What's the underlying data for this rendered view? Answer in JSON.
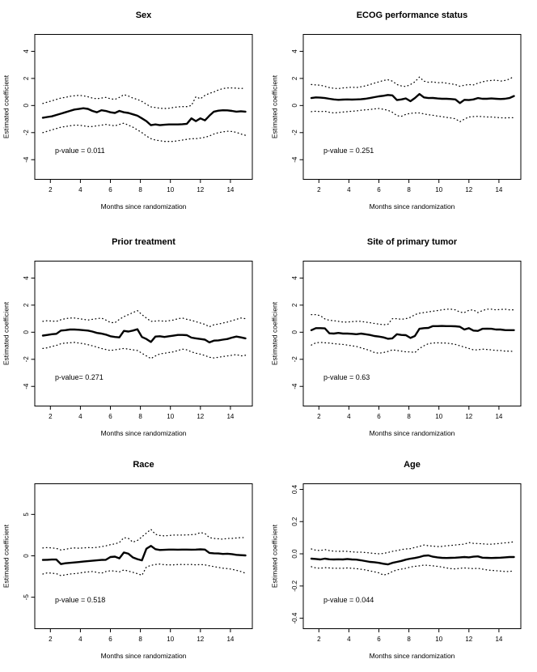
{
  "figure": {
    "description": "Grid of six time-varying coefficient diagnostic plots (solid estimate with dotted 95% confidence bands)",
    "background_color": "#ffffff",
    "line_color": "#000000"
  },
  "axes_common": {
    "xlabel": "Months since randomization",
    "ylabel": "Estimated coefficient",
    "xlim": [
      0.96,
      15.46
    ],
    "x_tick_vals": [
      2,
      4,
      6,
      8,
      10,
      12,
      14
    ],
    "x_tick_labels": [
      "2",
      "4",
      "6",
      "8",
      "10",
      "12",
      "14"
    ],
    "x_start": 1.5,
    "x_step": 0.3,
    "n_points": 46,
    "grid": "off",
    "band_style": "dotted",
    "fit_style": "solid-bold"
  },
  "chart_data": [
    {
      "type": "line",
      "title": "Sex",
      "p_label": "p-value = 0.011",
      "p_value": 0.011,
      "ylim": [
        -5.45,
        5.25
      ],
      "y_tick_vals": [
        -4,
        -2,
        0,
        2,
        4
      ],
      "y_tick_labels": [
        "-4",
        "-2",
        "0",
        "2",
        "4"
      ],
      "fit": [
        -0.9,
        -0.85,
        -0.8,
        -0.7,
        -0.6,
        -0.5,
        -0.4,
        -0.3,
        -0.25,
        -0.2,
        -0.25,
        -0.4,
        -0.5,
        -0.35,
        -0.4,
        -0.5,
        -0.55,
        -0.4,
        -0.5,
        -0.55,
        -0.65,
        -0.75,
        -0.95,
        -1.15,
        -1.45,
        -1.4,
        -1.45,
        -1.42,
        -1.4,
        -1.4,
        -1.4,
        -1.38,
        -1.35,
        -0.95,
        -1.15,
        -0.95,
        -1.1,
        -0.75,
        -0.45,
        -0.38,
        -0.35,
        -0.36,
        -0.4,
        -0.45,
        -0.42,
        -0.45
      ],
      "upper": [
        0.15,
        0.25,
        0.35,
        0.45,
        0.55,
        0.6,
        0.68,
        0.72,
        0.75,
        0.72,
        0.65,
        0.55,
        0.5,
        0.55,
        0.6,
        0.5,
        0.45,
        0.6,
        0.8,
        0.7,
        0.55,
        0.45,
        0.3,
        0.1,
        -0.1,
        -0.15,
        -0.2,
        -0.22,
        -0.2,
        -0.15,
        -0.1,
        -0.08,
        -0.08,
        0.0,
        0.65,
        0.5,
        0.75,
        0.9,
        1.0,
        1.15,
        1.25,
        1.3,
        1.3,
        1.28,
        1.25,
        1.3
      ],
      "lower": [
        -2.0,
        -1.9,
        -1.8,
        -1.7,
        -1.6,
        -1.55,
        -1.5,
        -1.45,
        -1.45,
        -1.5,
        -1.55,
        -1.55,
        -1.5,
        -1.45,
        -1.4,
        -1.45,
        -1.5,
        -1.4,
        -1.3,
        -1.45,
        -1.6,
        -1.8,
        -2.0,
        -2.25,
        -2.45,
        -2.55,
        -2.6,
        -2.65,
        -2.65,
        -2.65,
        -2.6,
        -2.55,
        -2.5,
        -2.45,
        -2.45,
        -2.4,
        -2.35,
        -2.25,
        -2.1,
        -2.0,
        -1.95,
        -1.9,
        -1.92,
        -1.98,
        -2.1,
        -2.2
      ]
    },
    {
      "type": "line",
      "title": "ECOG performance status",
      "p_label": "p-value = 0.251",
      "p_value": 0.251,
      "ylim": [
        -5.45,
        5.25
      ],
      "y_tick_vals": [
        -4,
        -2,
        0,
        2,
        4
      ],
      "y_tick_labels": [
        "-4",
        "-2",
        "0",
        "2",
        "4"
      ],
      "fit": [
        0.55,
        0.6,
        0.58,
        0.55,
        0.5,
        0.45,
        0.42,
        0.44,
        0.45,
        0.44,
        0.45,
        0.46,
        0.5,
        0.55,
        0.62,
        0.68,
        0.72,
        0.78,
        0.75,
        0.4,
        0.45,
        0.52,
        0.32,
        0.55,
        0.85,
        0.6,
        0.55,
        0.56,
        0.52,
        0.5,
        0.5,
        0.48,
        0.45,
        0.18,
        0.42,
        0.4,
        0.45,
        0.55,
        0.5,
        0.5,
        0.52,
        0.5,
        0.48,
        0.5,
        0.55,
        0.7
      ],
      "upper": [
        1.55,
        1.52,
        1.5,
        1.42,
        1.32,
        1.27,
        1.25,
        1.3,
        1.32,
        1.35,
        1.32,
        1.38,
        1.45,
        1.55,
        1.65,
        1.75,
        1.85,
        1.9,
        1.8,
        1.55,
        1.45,
        1.4,
        1.55,
        1.75,
        2.1,
        1.8,
        1.72,
        1.75,
        1.68,
        1.7,
        1.65,
        1.6,
        1.55,
        1.42,
        1.5,
        1.55,
        1.52,
        1.65,
        1.75,
        1.82,
        1.85,
        1.88,
        1.8,
        1.85,
        1.95,
        2.15
      ],
      "lower": [
        -0.45,
        -0.42,
        -0.45,
        -0.42,
        -0.5,
        -0.55,
        -0.52,
        -0.48,
        -0.45,
        -0.42,
        -0.4,
        -0.35,
        -0.32,
        -0.3,
        -0.25,
        -0.22,
        -0.28,
        -0.35,
        -0.5,
        -0.75,
        -0.8,
        -0.65,
        -0.58,
        -0.55,
        -0.55,
        -0.62,
        -0.68,
        -0.72,
        -0.78,
        -0.82,
        -0.88,
        -0.92,
        -0.98,
        -1.2,
        -1.0,
        -0.85,
        -0.82,
        -0.8,
        -0.82,
        -0.85,
        -0.85,
        -0.88,
        -0.9,
        -0.92,
        -0.9,
        -0.9
      ]
    },
    {
      "type": "line",
      "title": "Prior treatment",
      "p_label": "p-value= 0.271",
      "p_value": 0.271,
      "ylim": [
        -5.45,
        5.25
      ],
      "y_tick_vals": [
        -4,
        -2,
        0,
        2,
        4
      ],
      "y_tick_labels": [
        "-4",
        "-2",
        "0",
        "2",
        "4"
      ],
      "fit": [
        -0.25,
        -0.2,
        -0.15,
        -0.12,
        0.12,
        0.15,
        0.2,
        0.2,
        0.18,
        0.15,
        0.12,
        0.05,
        -0.05,
        -0.1,
        -0.18,
        -0.3,
        -0.35,
        -0.38,
        0.1,
        0.05,
        0.12,
        0.22,
        -0.35,
        -0.5,
        -0.72,
        -0.32,
        -0.3,
        -0.35,
        -0.3,
        -0.25,
        -0.2,
        -0.2,
        -0.22,
        -0.4,
        -0.45,
        -0.5,
        -0.55,
        -0.75,
        -0.62,
        -0.6,
        -0.55,
        -0.5,
        -0.4,
        -0.32,
        -0.38,
        -0.45
      ],
      "upper": [
        0.8,
        0.85,
        0.82,
        0.8,
        0.92,
        1.0,
        1.05,
        1.05,
        1.0,
        0.95,
        0.9,
        0.95,
        1.0,
        1.05,
        0.9,
        0.72,
        0.7,
        0.95,
        1.15,
        1.3,
        1.45,
        1.6,
        1.3,
        1.05,
        0.8,
        0.82,
        0.85,
        0.8,
        0.85,
        0.9,
        1.0,
        1.05,
        0.95,
        0.88,
        0.78,
        0.68,
        0.58,
        0.4,
        0.55,
        0.6,
        0.68,
        0.75,
        0.85,
        0.95,
        1.05,
        1.0
      ],
      "lower": [
        -1.2,
        -1.15,
        -1.05,
        -0.98,
        -0.85,
        -0.8,
        -0.78,
        -0.75,
        -0.8,
        -0.85,
        -0.92,
        -1.0,
        -1.1,
        -1.2,
        -1.28,
        -1.35,
        -1.3,
        -1.25,
        -1.2,
        -1.25,
        -1.3,
        -1.35,
        -1.55,
        -1.75,
        -1.95,
        -1.75,
        -1.6,
        -1.55,
        -1.5,
        -1.45,
        -1.35,
        -1.25,
        -1.3,
        -1.45,
        -1.55,
        -1.62,
        -1.72,
        -1.85,
        -1.9,
        -1.85,
        -1.8,
        -1.75,
        -1.7,
        -1.65,
        -1.75,
        -1.7
      ]
    },
    {
      "type": "line",
      "title": "Site of primary tumor",
      "p_label": "p-value = 0.63",
      "p_value": 0.63,
      "ylim": [
        -5.45,
        5.25
      ],
      "y_tick_vals": [
        -4,
        -2,
        0,
        2,
        4
      ],
      "y_tick_labels": [
        "-4",
        "-2",
        "0",
        "2",
        "4"
      ],
      "fit": [
        0.15,
        0.3,
        0.3,
        0.28,
        -0.08,
        -0.1,
        -0.05,
        -0.1,
        -0.1,
        -0.12,
        -0.15,
        -0.1,
        -0.15,
        -0.2,
        -0.28,
        -0.32,
        -0.38,
        -0.48,
        -0.45,
        -0.15,
        -0.2,
        -0.22,
        -0.42,
        -0.28,
        0.25,
        0.3,
        0.32,
        0.45,
        0.45,
        0.46,
        0.45,
        0.45,
        0.44,
        0.4,
        0.2,
        0.3,
        0.12,
        0.1,
        0.25,
        0.26,
        0.25,
        0.2,
        0.2,
        0.16,
        0.15,
        0.15
      ],
      "upper": [
        1.3,
        1.3,
        1.22,
        0.98,
        0.88,
        0.85,
        0.8,
        0.75,
        0.75,
        0.78,
        0.8,
        0.8,
        0.75,
        0.7,
        0.65,
        0.6,
        0.55,
        0.58,
        1.0,
        1.0,
        0.95,
        1.0,
        1.1,
        1.3,
        1.4,
        1.45,
        1.5,
        1.55,
        1.6,
        1.65,
        1.7,
        1.7,
        1.65,
        1.48,
        1.45,
        1.62,
        1.65,
        1.45,
        1.6,
        1.7,
        1.7,
        1.65,
        1.68,
        1.7,
        1.65,
        1.65
      ],
      "lower": [
        -0.95,
        -0.78,
        -0.75,
        -0.78,
        -0.8,
        -0.85,
        -0.88,
        -0.9,
        -0.95,
        -1.0,
        -1.05,
        -1.15,
        -1.25,
        -1.35,
        -1.5,
        -1.55,
        -1.5,
        -1.42,
        -1.3,
        -1.35,
        -1.4,
        -1.45,
        -1.45,
        -1.5,
        -1.2,
        -1.0,
        -0.85,
        -0.8,
        -0.78,
        -0.8,
        -0.8,
        -0.85,
        -0.9,
        -1.0,
        -1.1,
        -1.2,
        -1.3,
        -1.3,
        -1.25,
        -1.28,
        -1.3,
        -1.35,
        -1.35,
        -1.4,
        -1.4,
        -1.42
      ]
    },
    {
      "type": "line",
      "title": "Race",
      "p_label": "p-value = 0.518",
      "p_value": 0.518,
      "ylim": [
        -8.8,
        8.7
      ],
      "y_tick_vals": [
        -5,
        0,
        5
      ],
      "y_tick_labels": [
        "-5",
        "0",
        "5"
      ],
      "fit": [
        -0.5,
        -0.48,
        -0.45,
        -0.45,
        -1.0,
        -0.9,
        -0.85,
        -0.8,
        -0.75,
        -0.7,
        -0.65,
        -0.6,
        -0.55,
        -0.5,
        -0.48,
        -0.15,
        -0.1,
        -0.3,
        0.4,
        0.25,
        -0.2,
        -0.4,
        -0.55,
        0.85,
        1.2,
        0.8,
        0.7,
        0.72,
        0.75,
        0.75,
        0.74,
        0.75,
        0.75,
        0.74,
        0.75,
        0.78,
        0.75,
        0.35,
        0.3,
        0.28,
        0.22,
        0.25,
        0.2,
        0.12,
        0.08,
        0.05
      ],
      "upper": [
        0.95,
        1.0,
        0.95,
        0.9,
        0.7,
        0.78,
        0.9,
        0.95,
        0.92,
        0.95,
        1.0,
        0.98,
        1.02,
        1.1,
        1.2,
        1.35,
        1.45,
        1.6,
        2.2,
        2.1,
        1.65,
        1.85,
        2.3,
        2.75,
        3.2,
        2.6,
        2.45,
        2.4,
        2.45,
        2.5,
        2.5,
        2.5,
        2.52,
        2.55,
        2.6,
        2.8,
        2.7,
        2.2,
        2.1,
        2.05,
        2.0,
        2.1,
        2.1,
        2.15,
        2.2,
        2.2
      ],
      "lower": [
        -2.2,
        -2.05,
        -2.1,
        -2.15,
        -2.4,
        -2.3,
        -2.2,
        -2.15,
        -2.1,
        -2.0,
        -1.95,
        -1.9,
        -2.0,
        -2.1,
        -1.9,
        -1.8,
        -1.85,
        -1.95,
        -1.7,
        -1.85,
        -2.0,
        -2.15,
        -2.35,
        -1.35,
        -1.15,
        -1.05,
        -1.0,
        -1.08,
        -1.1,
        -1.1,
        -1.05,
        -1.05,
        -1.06,
        -1.05,
        -1.1,
        -1.05,
        -1.1,
        -1.2,
        -1.3,
        -1.4,
        -1.5,
        -1.55,
        -1.62,
        -1.75,
        -1.9,
        -2.1
      ]
    },
    {
      "type": "line",
      "title": "Age",
      "p_label": "p-value = 0.044",
      "p_value": 0.044,
      "ylim": [
        -0.465,
        0.435
      ],
      "y_tick_vals": [
        -0.4,
        -0.2,
        0,
        0.2,
        0.4
      ],
      "y_tick_labels": [
        "-0.4",
        "-0.2",
        "0.0",
        "0.2",
        "0.4"
      ],
      "fit": [
        -0.03,
        -0.032,
        -0.035,
        -0.03,
        -0.034,
        -0.035,
        -0.034,
        -0.035,
        -0.032,
        -0.035,
        -0.036,
        -0.04,
        -0.045,
        -0.05,
        -0.052,
        -0.056,
        -0.062,
        -0.066,
        -0.056,
        -0.05,
        -0.044,
        -0.036,
        -0.03,
        -0.026,
        -0.02,
        -0.012,
        -0.01,
        -0.018,
        -0.022,
        -0.025,
        -0.026,
        -0.025,
        -0.024,
        -0.022,
        -0.02,
        -0.022,
        -0.018,
        -0.016,
        -0.024,
        -0.025,
        -0.026,
        -0.025,
        -0.024,
        -0.022,
        -0.02,
        -0.02
      ],
      "upper": [
        0.03,
        0.022,
        0.02,
        0.026,
        0.02,
        0.016,
        0.015,
        0.016,
        0.015,
        0.012,
        0.01,
        0.01,
        0.008,
        0.005,
        0.002,
        0.0,
        0.002,
        0.008,
        0.015,
        0.02,
        0.026,
        0.03,
        0.032,
        0.04,
        0.046,
        0.055,
        0.05,
        0.048,
        0.045,
        0.046,
        0.05,
        0.052,
        0.055,
        0.058,
        0.06,
        0.07,
        0.065,
        0.064,
        0.062,
        0.06,
        0.06,
        0.062,
        0.065,
        0.068,
        0.07,
        0.075
      ],
      "lower": [
        -0.08,
        -0.088,
        -0.09,
        -0.086,
        -0.088,
        -0.09,
        -0.09,
        -0.09,
        -0.088,
        -0.09,
        -0.092,
        -0.096,
        -0.1,
        -0.106,
        -0.112,
        -0.118,
        -0.132,
        -0.125,
        -0.11,
        -0.1,
        -0.095,
        -0.09,
        -0.082,
        -0.078,
        -0.075,
        -0.07,
        -0.072,
        -0.075,
        -0.078,
        -0.082,
        -0.088,
        -0.092,
        -0.094,
        -0.09,
        -0.088,
        -0.09,
        -0.092,
        -0.09,
        -0.095,
        -0.1,
        -0.103,
        -0.105,
        -0.107,
        -0.11,
        -0.11,
        -0.105
      ]
    }
  ]
}
